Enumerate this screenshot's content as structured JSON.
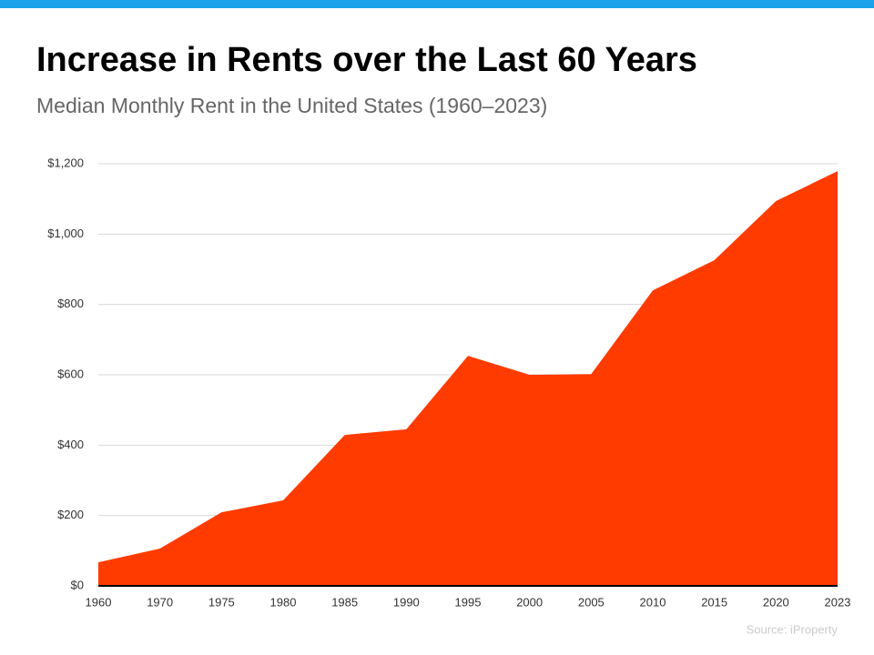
{
  "chart_data": {
    "type": "area",
    "title": "Increase in Rents over the Last 60 Years",
    "subtitle": "Median Monthly Rent in the United States (1960–2023)",
    "source": "Source: iProperty",
    "categories": [
      "1960",
      "1970",
      "1975",
      "1980",
      "1985",
      "1990",
      "1995",
      "2000",
      "2005",
      "2010",
      "2015",
      "2020",
      "2023"
    ],
    "values": [
      67,
      106,
      209,
      243,
      429,
      445,
      654,
      600,
      602,
      840,
      926,
      1094,
      1179
    ],
    "color": "#ff3b00",
    "ylim": [
      0,
      1200
    ],
    "yticks": [
      {
        "value": 0,
        "label": "$0"
      },
      {
        "value": 200,
        "label": "$200"
      },
      {
        "value": 400,
        "label": "$400"
      },
      {
        "value": 600,
        "label": "$600"
      },
      {
        "value": 800,
        "label": "$800"
      },
      {
        "value": 1000,
        "label": "$1,000"
      },
      {
        "value": 1200,
        "label": "$1,200"
      }
    ],
    "grid": true
  }
}
